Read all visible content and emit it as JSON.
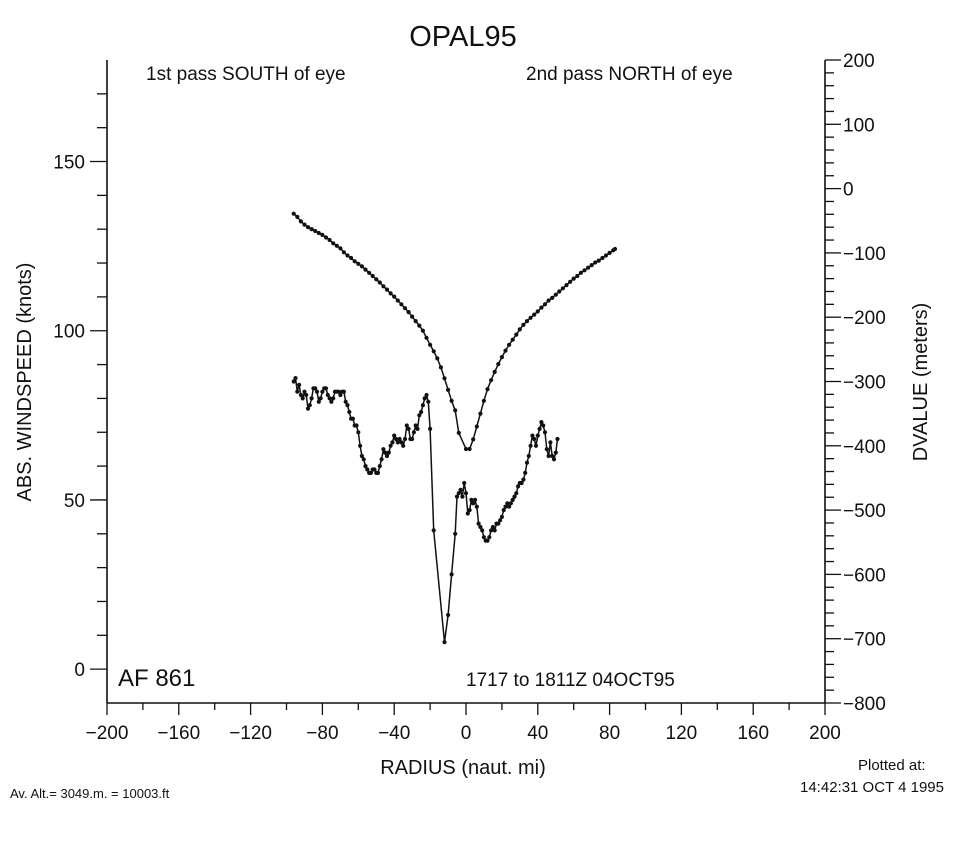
{
  "chart_data": {
    "type": "line",
    "title": "OPAL95",
    "annotations": {
      "left_top": "1st pass SOUTH of eye",
      "right_top": "2nd pass NORTH of eye",
      "flight": "AF 861",
      "time_range": "1717 to 1811Z 04OCT95"
    },
    "xlabel": "RADIUS (naut. mi)",
    "ylabel_left": "ABS. WINDSPEED (knots)",
    "ylabel_right": "DVALUE (meters)",
    "xlim": [
      -200,
      200
    ],
    "ylim_left": [
      -10,
      180
    ],
    "ylim_right": [
      -800,
      200
    ],
    "x_ticks": [
      "-200",
      "-160",
      "-120",
      "-80",
      "-40",
      "0",
      "40",
      "80",
      "120",
      "160",
      "200"
    ],
    "y_left_ticks": [
      "0",
      "50",
      "100",
      "150"
    ],
    "y_right_ticks": [
      "200",
      "100",
      "0",
      "-100",
      "-200",
      "-300",
      "-400",
      "-500",
      "-600",
      "-700",
      "-800"
    ],
    "grid": false,
    "series": [
      {
        "axis": "right",
        "points": [
          [
            -96,
            -39
          ],
          [
            -94,
            -44
          ],
          [
            -92,
            -51
          ],
          [
            -90,
            -56
          ],
          [
            -88,
            -60
          ],
          [
            -86,
            -63
          ],
          [
            -84,
            -66
          ],
          [
            -82,
            -69
          ],
          [
            -80,
            -72
          ],
          [
            -78,
            -76
          ],
          [
            -76,
            -80
          ],
          [
            -74,
            -85
          ],
          [
            -72,
            -89
          ],
          [
            -70,
            -93
          ],
          [
            -68,
            -99
          ],
          [
            -66,
            -104
          ],
          [
            -64,
            -108
          ],
          [
            -62,
            -113
          ],
          [
            -60,
            -117
          ],
          [
            -58,
            -121
          ],
          [
            -56,
            -126
          ],
          [
            -54,
            -131
          ],
          [
            -52,
            -136
          ],
          [
            -50,
            -141
          ],
          [
            -48,
            -146
          ],
          [
            -46,
            -152
          ],
          [
            -44,
            -157
          ],
          [
            -42,
            -163
          ],
          [
            -40,
            -168
          ],
          [
            -38,
            -174
          ],
          [
            -36,
            -180
          ],
          [
            -34,
            -186
          ],
          [
            -32,
            -192
          ],
          [
            -30,
            -199
          ],
          [
            -28,
            -206
          ],
          [
            -26,
            -213
          ],
          [
            -24,
            -221
          ],
          [
            -22,
            -232
          ],
          [
            -20,
            -243
          ],
          [
            -18,
            -253
          ],
          [
            -16,
            -264
          ],
          [
            -14,
            -278
          ],
          [
            -12,
            -295
          ],
          [
            -10,
            -313
          ],
          [
            -8,
            -330
          ],
          [
            -6,
            -345
          ],
          [
            -4,
            -380
          ],
          [
            0,
            -405
          ],
          [
            2,
            -405
          ],
          [
            4,
            -390
          ],
          [
            6,
            -370
          ],
          [
            8,
            -350
          ],
          [
            10,
            -330
          ],
          [
            12,
            -312
          ],
          [
            14,
            -298
          ],
          [
            16,
            -285
          ],
          [
            18,
            -273
          ],
          [
            20,
            -262
          ],
          [
            22,
            -252
          ],
          [
            24,
            -243
          ],
          [
            26,
            -235
          ],
          [
            28,
            -227
          ],
          [
            30,
            -219
          ],
          [
            32,
            -212
          ],
          [
            34,
            -206
          ],
          [
            36,
            -201
          ],
          [
            38,
            -196
          ],
          [
            40,
            -191
          ],
          [
            42,
            -185
          ],
          [
            44,
            -180
          ],
          [
            46,
            -174
          ],
          [
            48,
            -170
          ],
          [
            50,
            -165
          ],
          [
            52,
            -160
          ],
          [
            54,
            -155
          ],
          [
            56,
            -150
          ],
          [
            58,
            -145
          ],
          [
            60,
            -140
          ],
          [
            62,
            -136
          ],
          [
            64,
            -131
          ],
          [
            66,
            -127
          ],
          [
            68,
            -123
          ],
          [
            70,
            -119
          ],
          [
            72,
            -115
          ],
          [
            74,
            -112
          ],
          [
            76,
            -108
          ],
          [
            78,
            -104
          ],
          [
            80,
            -100
          ],
          [
            82,
            -96
          ],
          [
            83,
            -94
          ]
        ]
      },
      {
        "axis": "left",
        "points": [
          [
            -96,
            85
          ],
          [
            -95,
            86
          ],
          [
            -94,
            82
          ],
          [
            -93,
            84
          ],
          [
            -92,
            81
          ],
          [
            -91,
            80
          ],
          [
            -90,
            82
          ],
          [
            -89,
            81
          ],
          [
            -88,
            77
          ],
          [
            -87,
            78
          ],
          [
            -86,
            80
          ],
          [
            -85,
            83
          ],
          [
            -84,
            83
          ],
          [
            -83,
            82
          ],
          [
            -82,
            79
          ],
          [
            -81,
            80
          ],
          [
            -80,
            82
          ],
          [
            -79,
            83
          ],
          [
            -78,
            83
          ],
          [
            -77,
            81
          ],
          [
            -76,
            80
          ],
          [
            -75,
            79
          ],
          [
            -74,
            80
          ],
          [
            -73,
            82
          ],
          [
            -72,
            82
          ],
          [
            -71,
            82
          ],
          [
            -70,
            81
          ],
          [
            -69,
            82
          ],
          [
            -68,
            82
          ],
          [
            -67,
            79
          ],
          [
            -66,
            78
          ],
          [
            -65,
            76
          ],
          [
            -64,
            74
          ],
          [
            -63,
            74
          ],
          [
            -62,
            72
          ],
          [
            -61,
            72
          ],
          [
            -60,
            70
          ],
          [
            -59,
            66
          ],
          [
            -58,
            63
          ],
          [
            -57,
            62
          ],
          [
            -56,
            60
          ],
          [
            -55,
            59
          ],
          [
            -54,
            58
          ],
          [
            -53,
            58
          ],
          [
            -52,
            59
          ],
          [
            -51,
            59
          ],
          [
            -50,
            58
          ],
          [
            -49,
            58
          ],
          [
            -48,
            60
          ],
          [
            -47,
            62
          ],
          [
            -46,
            65
          ],
          [
            -45,
            64
          ],
          [
            -44,
            63
          ],
          [
            -43,
            64
          ],
          [
            -42,
            66
          ],
          [
            -41,
            67
          ],
          [
            -40,
            69
          ],
          [
            -39,
            68
          ],
          [
            -38,
            67
          ],
          [
            -37,
            68
          ],
          [
            -36,
            67
          ],
          [
            -35,
            66
          ],
          [
            -34,
            68
          ],
          [
            -33,
            72
          ],
          [
            -32,
            71
          ],
          [
            -31,
            68
          ],
          [
            -30,
            68
          ],
          [
            -29,
            70
          ],
          [
            -28,
            72
          ],
          [
            -27,
            71
          ],
          [
            -26,
            75
          ],
          [
            -25,
            76
          ],
          [
            -24,
            78
          ],
          [
            -23,
            80
          ],
          [
            -22,
            81
          ],
          [
            -21,
            79
          ],
          [
            -20,
            71
          ],
          [
            -18,
            41
          ],
          [
            -12,
            8
          ],
          [
            -10,
            16
          ],
          [
            -8,
            28
          ],
          [
            -6,
            40
          ],
          [
            -5,
            51
          ],
          [
            -4,
            52
          ],
          [
            -3,
            53
          ],
          [
            -2,
            51
          ],
          [
            -1,
            55
          ],
          [
            0,
            52
          ],
          [
            1,
            46
          ],
          [
            2,
            47
          ],
          [
            3,
            50
          ],
          [
            4,
            49
          ],
          [
            5,
            50
          ],
          [
            6,
            48
          ],
          [
            7,
            43
          ],
          [
            8,
            42
          ],
          [
            9,
            41
          ],
          [
            10,
            39
          ],
          [
            11,
            38
          ],
          [
            12,
            38
          ],
          [
            13,
            39
          ],
          [
            14,
            41
          ],
          [
            15,
            42
          ],
          [
            16,
            41
          ],
          [
            17,
            43
          ],
          [
            18,
            43
          ],
          [
            19,
            44
          ],
          [
            20,
            45
          ],
          [
            21,
            47
          ],
          [
            22,
            48
          ],
          [
            23,
            49
          ],
          [
            24,
            48
          ],
          [
            25,
            49
          ],
          [
            26,
            50
          ],
          [
            27,
            51
          ],
          [
            28,
            52
          ],
          [
            29,
            54
          ],
          [
            30,
            55
          ],
          [
            31,
            55
          ],
          [
            32,
            56
          ],
          [
            33,
            58
          ],
          [
            34,
            61
          ],
          [
            35,
            63
          ],
          [
            36,
            66
          ],
          [
            37,
            69
          ],
          [
            38,
            68
          ],
          [
            39,
            66
          ],
          [
            40,
            69
          ],
          [
            41,
            71
          ],
          [
            42,
            73
          ],
          [
            43,
            72
          ],
          [
            44,
            70
          ],
          [
            45,
            65
          ],
          [
            46,
            63
          ],
          [
            47,
            67
          ],
          [
            48,
            63
          ],
          [
            49,
            62
          ],
          [
            50,
            64
          ],
          [
            51,
            68
          ]
        ]
      }
    ]
  },
  "footer": {
    "av_alt": "Av. Alt.= 3049.m. = 10003.ft",
    "plotted_at_label": "Plotted at:",
    "plotted_at_time": "14:42:31 OCT  4 1995"
  }
}
